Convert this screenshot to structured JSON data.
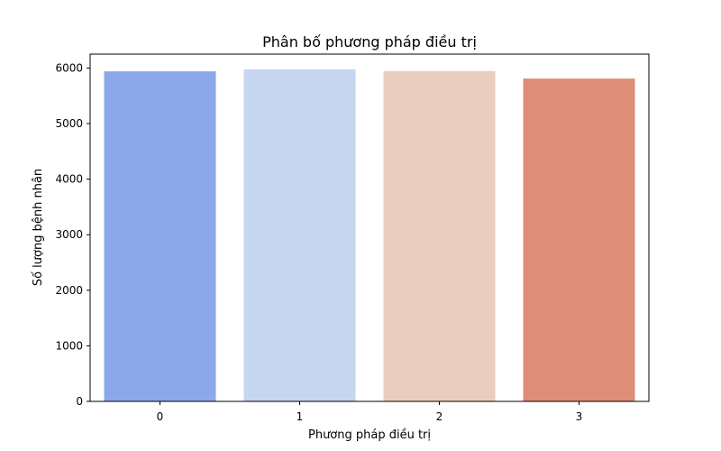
{
  "chart_data": {
    "type": "bar",
    "title": "Phân bố phương pháp điều trị",
    "xlabel": "Phương pháp điều trị",
    "ylabel": "Số lượng bệnh nhân",
    "categories": [
      "0",
      "1",
      "2",
      "3"
    ],
    "values": [
      5940,
      5975,
      5945,
      5810
    ],
    "colors": [
      "#8ba8eb",
      "#c6d5f0",
      "#ebcdc0",
      "#dd8e78"
    ],
    "ylim": [
      0,
      6250
    ],
    "yticks": [
      0,
      1000,
      2000,
      3000,
      4000,
      5000,
      6000
    ],
    "grid": false,
    "legend": "none"
  }
}
